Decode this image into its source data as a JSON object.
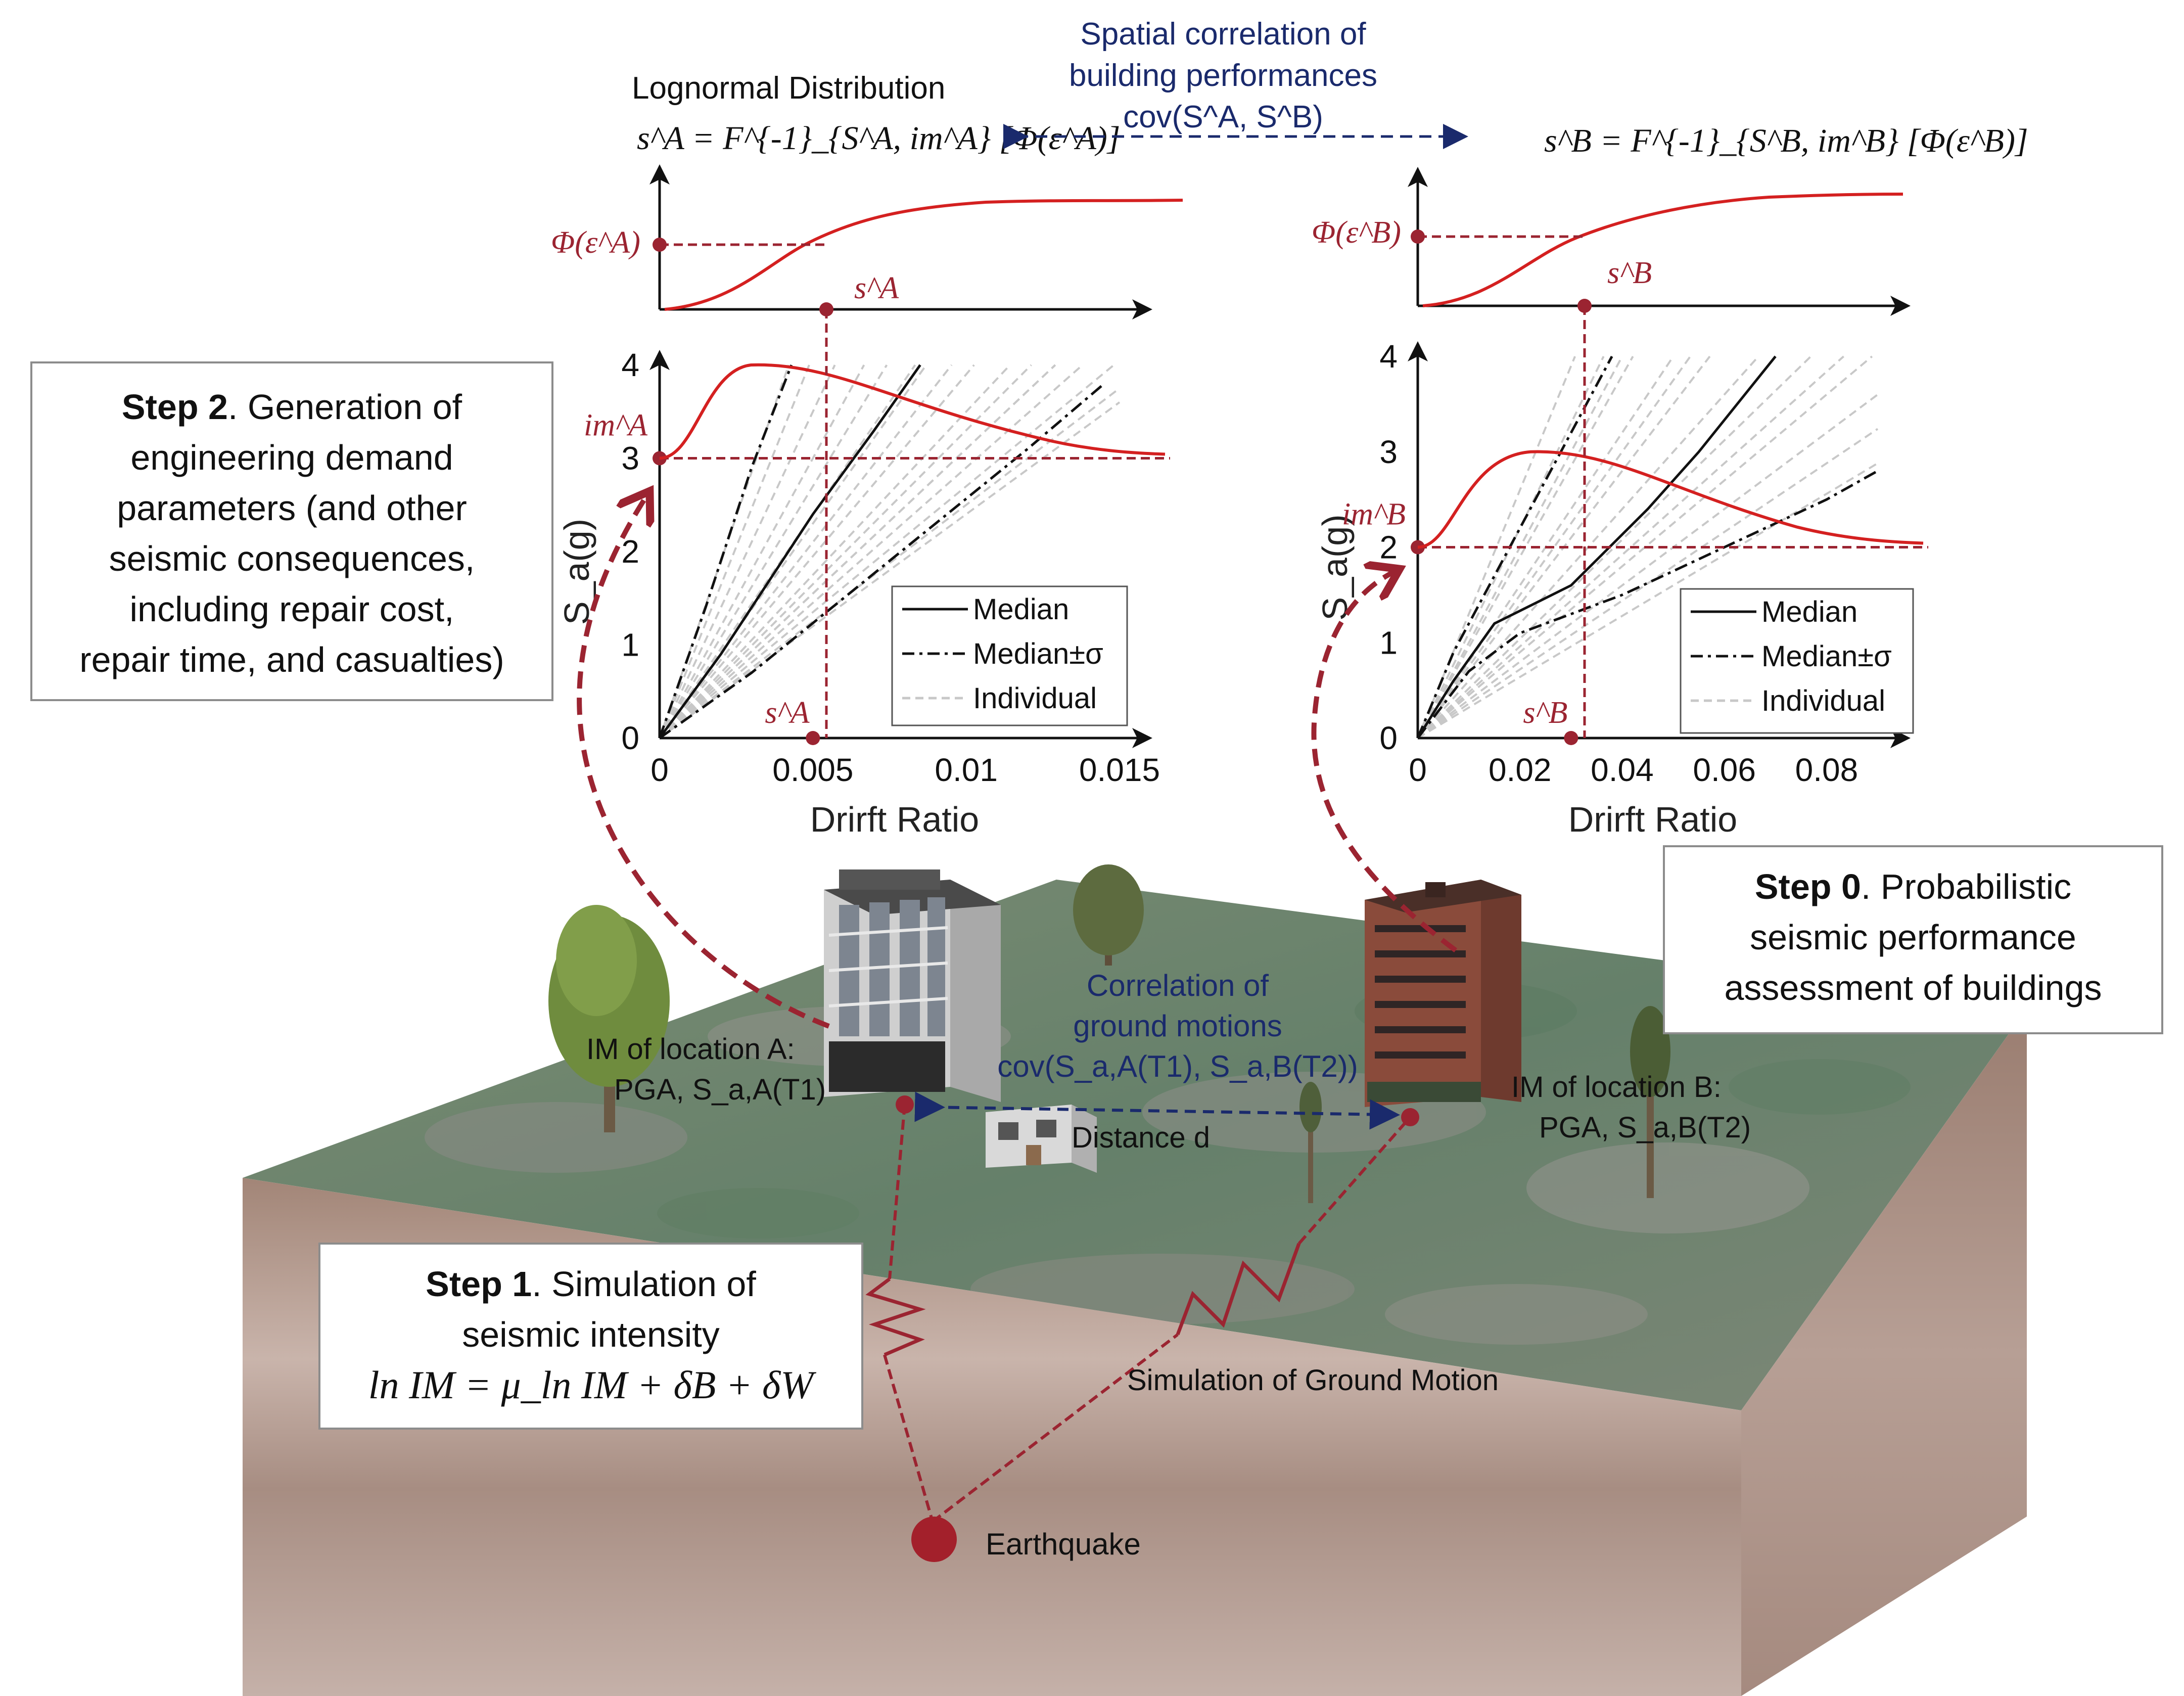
{
  "top": {
    "left_title": "Lognormal Distribution",
    "left_formula": "s^A = F^{-1}_{S^A, im^A} [Φ(ε^A)]",
    "right_formula": "s^B = F^{-1}_{S^B, im^B} [Φ(ε^B)]",
    "corr_line1": "Spatial correlation of",
    "corr_line2": "building performances",
    "corr_line3": "cov(S^A, S^B)"
  },
  "cdf_a": {
    "y_label": "Φ(ε^A)",
    "x_marker": "s^A"
  },
  "cdf_b": {
    "y_label": "Φ(ε^B)",
    "x_marker": "s^B"
  },
  "chart_data": [
    {
      "type": "line",
      "id": "building-A",
      "xlabel": "Drirft Ratio",
      "ylabel": "S_a(g)",
      "xlim": [
        0,
        0.015
      ],
      "ylim": [
        0,
        4
      ],
      "xticks": [
        "0",
        "0.005",
        "0.01",
        "0.015"
      ],
      "yticks": [
        "0",
        "1",
        "2",
        "3",
        "4"
      ],
      "im_label": "im^A",
      "im_value": 3,
      "s_label": "s^A",
      "s_value": 0.005,
      "legend": [
        "Median",
        "Median±σ",
        "Individual"
      ],
      "series": [
        {
          "name": "Median",
          "x": [
            0,
            0.002,
            0.004,
            0.005,
            0.007,
            0.0085
          ],
          "y": [
            0,
            0.9,
            1.9,
            2.4,
            3.3,
            4.0
          ]
        },
        {
          "name": "Median±σ",
          "x": [
            0,
            0.0015,
            0.003,
            0.0043
          ],
          "y": [
            0,
            1.4,
            2.9,
            4.0
          ]
        },
        {
          "name": "Median±σ",
          "x": [
            0,
            0.003,
            0.006,
            0.009,
            0.012,
            0.0145
          ],
          "y": [
            0,
            0.7,
            1.5,
            2.3,
            3.1,
            3.8
          ]
        }
      ],
      "individual_slopes": [
        600,
        700,
        820,
        950,
        540,
        480,
        420,
        390,
        350,
        330,
        310,
        290,
        270,
        250,
        240,
        310,
        460
      ]
    },
    {
      "type": "line",
      "id": "building-B",
      "xlabel": "Drirft Ratio",
      "ylabel": "S_a(g)",
      "xlim": [
        0,
        0.09
      ],
      "ylim": [
        0,
        4
      ],
      "xticks": [
        "0",
        "0.02",
        "0.04",
        "0.06",
        "0.08"
      ],
      "yticks": [
        "0",
        "1",
        "2",
        "3",
        "4"
      ],
      "im_label": "im^B",
      "im_value": 2,
      "s_label": "s^B",
      "s_value": 0.03,
      "legend": [
        "Median",
        "Median±σ",
        "Individual"
      ],
      "series": [
        {
          "name": "Median",
          "x": [
            0,
            0.007,
            0.015,
            0.03,
            0.045,
            0.055,
            0.07
          ],
          "y": [
            0,
            0.6,
            1.2,
            1.6,
            2.4,
            3.0,
            4.0
          ]
        },
        {
          "name": "Median±σ",
          "x": [
            0,
            0.007,
            0.012,
            0.02,
            0.03,
            0.038
          ],
          "y": [
            0,
            0.9,
            1.4,
            2.2,
            3.2,
            4.0
          ]
        },
        {
          "name": "Median±σ",
          "x": [
            0,
            0.01,
            0.02,
            0.04,
            0.06,
            0.08,
            0.09
          ],
          "y": [
            0,
            0.7,
            1.1,
            1.5,
            2.0,
            2.5,
            2.8
          ]
        }
      ],
      "individual_slopes": [
        130,
        110,
        95,
        80,
        70,
        60,
        52,
        45,
        40,
        36,
        32,
        48,
        75,
        100
      ]
    }
  ],
  "steps": {
    "step2": {
      "bold": "Step 2",
      "line1": ". Generation of",
      "line2": "engineering demand",
      "line3": "parameters (and other",
      "line4": "seismic consequences,",
      "line5": "including repair cost,",
      "line6": "repair time, and casualties)"
    },
    "step0": {
      "bold": "Step 0",
      "line1": ". Probabilistic",
      "line2": "seismic performance",
      "line3": "assessment of buildings"
    },
    "step1": {
      "bold": "Step 1",
      "line1": ". Simulation of",
      "line2": "seismic intensity",
      "formula": "ln IM = μ_ln IM + δB + δW"
    }
  },
  "ground": {
    "corr_gm_line1": "Correlation of",
    "corr_gm_line2": "ground motions",
    "corr_gm_line3": "cov(S_a,A(T1), S_a,B(T2))",
    "distance": "Distance d",
    "im_a_line1": "IM of location A:",
    "im_a_line2": "PGA, S_a,A(T1)",
    "im_b_line1": "IM of location B:",
    "im_b_line2": "PGA, S_a,B(T2)",
    "sim_gm": "Simulation of Ground Motion",
    "earthquake": "Earthquake"
  },
  "colors": {
    "curve_red": "#d42020",
    "marker_red": "#9b2431",
    "navy": "#1a2a6c",
    "soil": "#b39d92",
    "grass": "#6f8a68"
  }
}
